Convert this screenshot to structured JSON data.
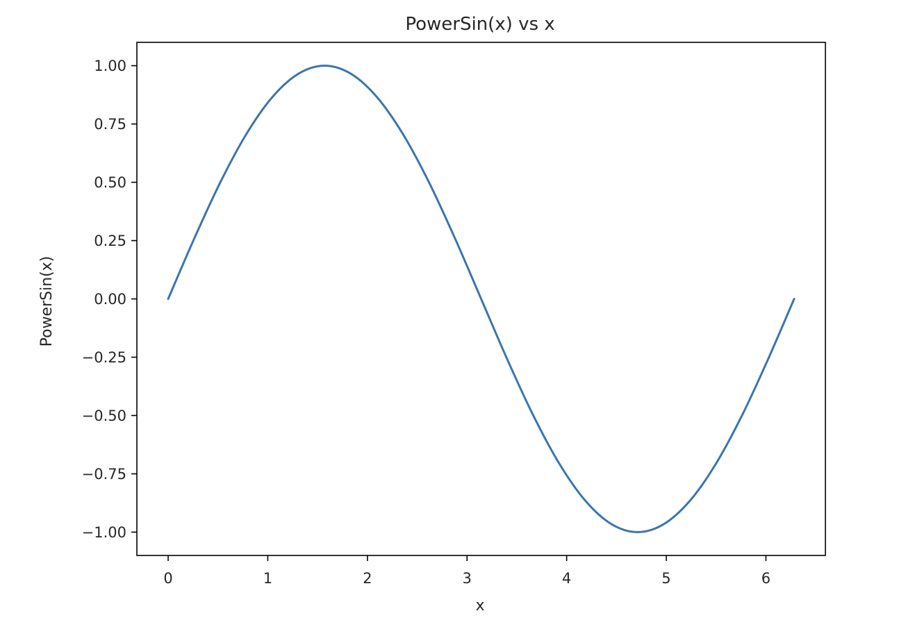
{
  "chart_data": {
    "type": "line",
    "title": "PowerSin(x) vs x",
    "xlabel": "x",
    "ylabel": "PowerSin(x)",
    "xlim": [
      -0.314,
      6.597
    ],
    "ylim": [
      -1.1,
      1.1
    ],
    "xticks": [
      0,
      1,
      2,
      3,
      4,
      5,
      6
    ],
    "xtick_labels": [
      "0",
      "1",
      "2",
      "3",
      "4",
      "5",
      "6"
    ],
    "yticks": [
      1.0,
      0.75,
      0.5,
      0.25,
      0.0,
      -0.25,
      -0.5,
      -0.75,
      -1.0
    ],
    "ytick_labels": [
      "1.00",
      "0.75",
      "0.50",
      "0.25",
      "0.00",
      "−0.25",
      "−0.50",
      "−0.75",
      "−1.00"
    ],
    "grid": false,
    "legend": null,
    "colors": {
      "line": "#3a75ae",
      "axes": "#000000",
      "text": "#262626",
      "background": "#ffffff"
    },
    "series": [
      {
        "x": [
          0.0,
          0.2618,
          0.5236,
          0.7854,
          1.0472,
          1.309,
          1.5708,
          1.8326,
          2.0944,
          2.3562,
          2.618,
          2.8798,
          3.1416,
          3.4034,
          3.6652,
          3.927,
          4.1888,
          4.4506,
          4.7124,
          4.9742,
          5.236,
          5.4978,
          5.7596,
          6.0214,
          6.2832
        ],
        "y": [
          0.0,
          0.2588,
          0.5,
          0.7071,
          0.866,
          0.9659,
          1.0,
          0.9659,
          0.866,
          0.7071,
          0.5,
          0.2588,
          0.0,
          -0.2588,
          -0.5,
          -0.7071,
          -0.866,
          -0.9659,
          -1.0,
          -0.9659,
          -0.866,
          -0.7071,
          -0.5,
          -0.2588,
          0.0
        ]
      }
    ]
  }
}
